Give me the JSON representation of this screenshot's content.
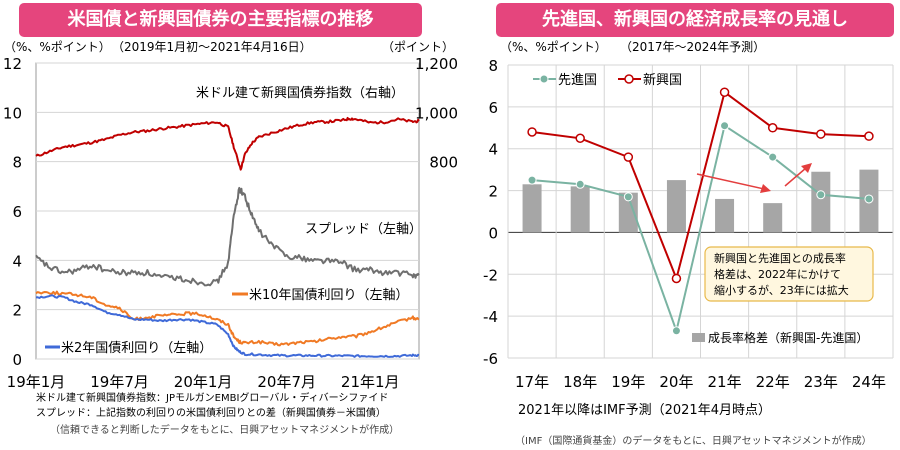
{
  "colors": {
    "header": "#e5457d",
    "red": "#c00000",
    "gray_line": "#6f6f6f",
    "orange": "#f07a25",
    "blue": "#3f6ad8",
    "teal": "#7ab3a2",
    "bar": "#a6a6a6",
    "note_bg": "#fff7df",
    "note_border": "#e8b94a",
    "arrow": "#e33e3e"
  },
  "left": {
    "header": "米国債と新興国債券の主要指標の推移",
    "unit_left": "（%、%ポイント）",
    "period": "（2019年1月初～2021年4月16日）",
    "unit_right": "（ポイント）",
    "notes": [
      "米ドル建て新興国債券指数：JPモルガンEMBIグローバル・ディバーシファイド",
      "スプレッド：上記指数の利回りの米国債利回りとの差（新興国債券－米国債）",
      "（信頼できると判断したデータをもとに、日興アセットマネジメントが作成）"
    ]
  },
  "right": {
    "header": "先進国、新興国の経済成長率の見通し",
    "unit_left": "（%、%ポイント）",
    "period": "（2017年～2024年予測）",
    "forecast_note": "2021年以降はIMF予測（2021年4月時点）",
    "callout": [
      "新興国と先進国との成長率",
      "格差は、2022年にかけて",
      "縮小するが、23年には拡大"
    ],
    "source": "（IMF（国際通貨基金）のデータをもとに、日興アセットマネジメントが作成）"
  },
  "chart_data": [
    {
      "type": "line",
      "title": "米国債と新興国債券の主要指標の推移",
      "x_ticks": [
        "19年1月",
        "19年7月",
        "20年1月",
        "20年7月",
        "21年1月"
      ],
      "x_range": [
        "2019-01",
        "2021-04-16"
      ],
      "y_left": {
        "ticks": [
          "0",
          "2",
          "4",
          "6",
          "8",
          "10",
          "12"
        ],
        "lim": [
          0,
          12
        ]
      },
      "y_right": {
        "ticks": [
          "800",
          "1,000",
          "1,200"
        ],
        "lim": [
          0,
          1200
        ]
      },
      "series": [
        {
          "name": "米ドル建て新興国債券指数（右軸）",
          "axis": "right",
          "color": "#c00000",
          "x": [
            0,
            1,
            2,
            3,
            4,
            5,
            6,
            7,
            8,
            9,
            10,
            11,
            12,
            13,
            13.8,
            14.2,
            14.7,
            15,
            15.5,
            16,
            17,
            18,
            19,
            20,
            21,
            22,
            22.5,
            23,
            24,
            25,
            26,
            27,
            27.5
          ],
          "values": [
            822,
            842,
            860,
            868,
            878,
            890,
            908,
            920,
            925,
            934,
            940,
            948,
            955,
            960,
            940,
            860,
            770,
            830,
            875,
            900,
            918,
            935,
            950,
            960,
            962,
            968,
            975,
            972,
            958,
            960,
            972,
            962,
            965
          ]
        },
        {
          "name": "スプレッド（左軸）",
          "axis": "left",
          "color": "#6f6f6f",
          "x": [
            0,
            1,
            2,
            3,
            4,
            5,
            6,
            7,
            8,
            9,
            10,
            11,
            12,
            13,
            13.8,
            14.2,
            14.6,
            15,
            15.5,
            16,
            17,
            18,
            19,
            20,
            21,
            22,
            23,
            24,
            25,
            26,
            27,
            27.5
          ],
          "values": [
            4.1,
            3.7,
            3.5,
            3.6,
            3.8,
            3.6,
            3.5,
            3.5,
            3.5,
            3.3,
            3.3,
            3.2,
            3.1,
            3.1,
            3.9,
            5.8,
            6.9,
            6.6,
            5.8,
            5.2,
            4.6,
            4.2,
            4.1,
            4.0,
            4.0,
            3.9,
            3.6,
            3.6,
            3.5,
            3.5,
            3.4,
            3.4
          ]
        },
        {
          "name": "米10年国債利回り（左軸）",
          "axis": "left",
          "color": "#f07a25",
          "x": [
            0,
            1,
            2,
            3,
            4,
            5,
            6,
            7,
            8,
            9,
            10,
            11,
            12,
            13,
            13.8,
            14.2,
            14.6,
            15,
            16,
            17,
            18,
            19,
            20,
            21,
            22,
            23,
            24,
            25,
            26,
            27,
            27.5
          ],
          "values": [
            2.7,
            2.7,
            2.65,
            2.6,
            2.5,
            2.2,
            2.05,
            1.6,
            1.7,
            1.75,
            1.8,
            1.85,
            1.8,
            1.6,
            1.4,
            0.9,
            0.7,
            0.65,
            0.7,
            0.6,
            0.6,
            0.68,
            0.7,
            0.82,
            0.9,
            0.92,
            1.1,
            1.3,
            1.5,
            1.68,
            1.6
          ]
        },
        {
          "name": "米2年国債利回り（左軸）",
          "axis": "left",
          "color": "#3f6ad8",
          "x": [
            0,
            1,
            2,
            3,
            4,
            5,
            6,
            7,
            8,
            9,
            10,
            11,
            12,
            13,
            13.8,
            14.2,
            14.6,
            15,
            16,
            17,
            18,
            19,
            20,
            21,
            22,
            23,
            24,
            25,
            26,
            27,
            27.5
          ],
          "values": [
            2.5,
            2.55,
            2.5,
            2.3,
            2.2,
            1.9,
            1.8,
            1.6,
            1.6,
            1.55,
            1.6,
            1.6,
            1.5,
            1.4,
            1.0,
            0.5,
            0.3,
            0.2,
            0.18,
            0.15,
            0.14,
            0.14,
            0.14,
            0.13,
            0.13,
            0.12,
            0.12,
            0.12,
            0.12,
            0.15,
            0.16
          ]
        }
      ]
    },
    {
      "type": "bar+line",
      "title": "先進国、新興国の経済成長率の見通し",
      "categories": [
        "17年",
        "18年",
        "19年",
        "20年",
        "21年",
        "22年",
        "23年",
        "24年"
      ],
      "y_ticks": [
        "-6",
        "-4",
        "-2",
        "0",
        "2",
        "4",
        "6",
        "8"
      ],
      "ylim": [
        -6,
        8
      ],
      "series": [
        {
          "name": "先進国",
          "type": "line",
          "color": "#7ab3a2",
          "values": [
            2.5,
            2.3,
            1.7,
            -4.7,
            5.1,
            3.6,
            1.8,
            1.6
          ]
        },
        {
          "name": "新興国",
          "type": "line",
          "color": "#c00000",
          "values": [
            4.8,
            4.5,
            3.6,
            -2.2,
            6.7,
            5.0,
            4.7,
            4.6
          ]
        },
        {
          "name": "成長率格差（新興国-先進国）",
          "type": "bar",
          "color": "#a6a6a6",
          "values": [
            2.3,
            2.2,
            1.9,
            2.5,
            1.6,
            1.4,
            2.9,
            3.0
          ]
        }
      ]
    }
  ]
}
